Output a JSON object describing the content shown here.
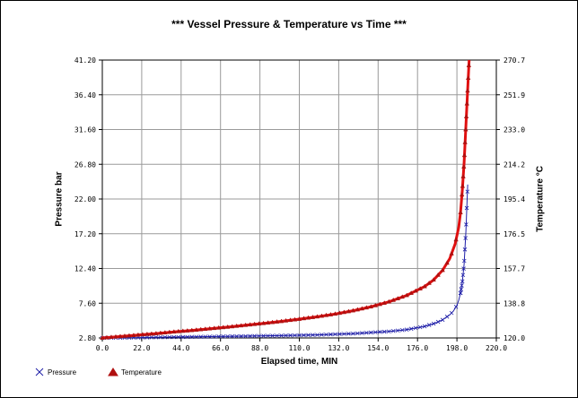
{
  "chart_data": {
    "type": "line",
    "title": "*** Vessel Pressure & Temperature vs  Time ***",
    "xlabel": "Elapsed time, MIN",
    "ylabel": "Pressure bar",
    "y2label": "Temperature  °C",
    "xlim": [
      0,
      220
    ],
    "ylim": [
      2.8,
      41.2
    ],
    "y2lim": [
      120.0,
      270.7
    ],
    "x_ticks": [
      "0.0",
      "22.0",
      "44.0",
      "66.0",
      "88.0",
      "110.0",
      "132.0",
      "154.0",
      "176.0",
      "198.0",
      "220.0"
    ],
    "y_ticks": [
      "2.80",
      "7.60",
      "12.40",
      "17.20",
      "22.00",
      "26.80",
      "31.60",
      "36.40",
      "41.20"
    ],
    "y2_ticks": [
      "120.0",
      "138.8",
      "157.7",
      "176.5",
      "195.4",
      "214.2",
      "233.0",
      "251.9",
      "270.7"
    ],
    "grid": true,
    "legend_position": "bottom-left",
    "series": [
      {
        "name": "Pressure",
        "axis": "left",
        "color": "#1f1fa8",
        "marker": "x",
        "x": [
          0,
          20,
          40,
          60,
          80,
          100,
          120,
          140,
          160,
          170,
          180,
          186,
          190,
          194,
          196,
          198,
          199,
          200,
          201,
          202,
          203,
          204
        ],
        "y": [
          2.8,
          2.85,
          2.92,
          2.98,
          3.05,
          3.12,
          3.22,
          3.4,
          3.7,
          3.95,
          4.4,
          4.85,
          5.3,
          6.0,
          6.5,
          7.3,
          8.0,
          9.0,
          10.5,
          13.0,
          17.5,
          24.0
        ]
      },
      {
        "name": "Temperature",
        "axis": "right",
        "color": "#e01010",
        "marker": "triangle",
        "x": [
          0,
          10,
          20,
          30,
          40,
          50,
          60,
          70,
          80,
          90,
          100,
          110,
          120,
          130,
          140,
          150,
          160,
          170,
          180,
          185,
          190,
          194,
          197,
          199,
          200,
          201,
          202,
          203,
          204,
          204.8
        ],
        "y": [
          120.0,
          120.8,
          121.6,
          122.4,
          123.3,
          124.1,
          125.0,
          125.9,
          126.9,
          127.9,
          129.0,
          130.2,
          131.5,
          133.0,
          134.8,
          136.9,
          139.6,
          143.1,
          147.9,
          151.5,
          156.7,
          163.0,
          171.0,
          180.0,
          188.0,
          200.0,
          215.0,
          235.0,
          255.0,
          270.7
        ]
      }
    ]
  }
}
